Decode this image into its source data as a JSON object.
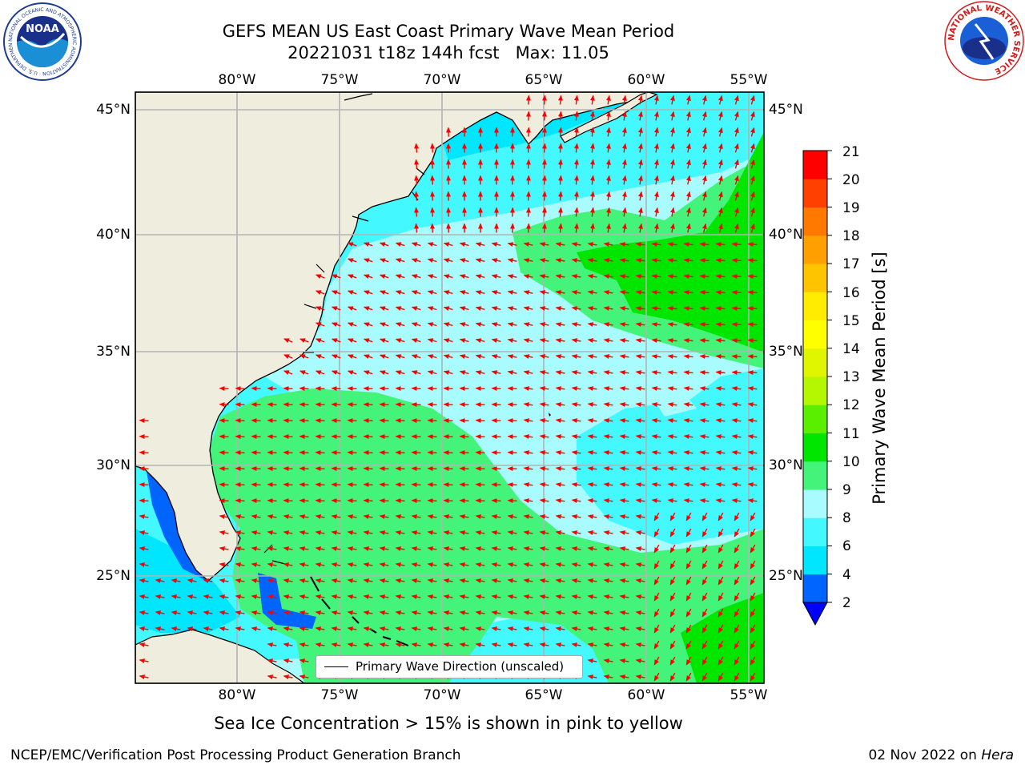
{
  "title": "GEFS MEAN US East Coast Primary Wave Mean Period",
  "subtitle_prefix": "20221031 t18z 144h fcst",
  "max_label": "Max: 11.05",
  "logos": {
    "left": "NOAA",
    "left_ring_text": "NATIONAL OCEANIC AND ATMOSPHERIC ADMINISTRATION · U.S. DEPARTMENT OF COMMERCE",
    "right_ring_text": "NATIONAL WEATHER SERVICE"
  },
  "map": {
    "lon_labels": [
      "80°W",
      "75°W",
      "70°W",
      "65°W",
      "60°W",
      "55°W"
    ],
    "lat_labels": [
      "45°N",
      "40°N",
      "35°N",
      "30°N",
      "25°N"
    ],
    "legend_label": "Primary Wave Direction (unscaled)",
    "colors": {
      "land": "#efedde",
      "arrow": "#ff0000",
      "grid": "#b3b3b3"
    }
  },
  "colorbar": {
    "label": "Primary Wave Mean Period [s]",
    "ticks": [
      2,
      4,
      6,
      8,
      9,
      10,
      11,
      12,
      13,
      14,
      15,
      16,
      17,
      18,
      19,
      20,
      21
    ],
    "colors": [
      "#0064ff",
      "#00e6ff",
      "#44f8ff",
      "#a8fbff",
      "#44f47a",
      "#00e600",
      "#5aee00",
      "#b4f700",
      "#dff600",
      "#ffff00",
      "#ffec00",
      "#ffc400",
      "#ffa000",
      "#ff7800",
      "#ff4000",
      "#ff0000"
    ],
    "extend_color": "#0000ff"
  },
  "footer": {
    "note": "Sea Ice Concentration > 15% is shown in pink to yellow",
    "left": "NCEP/EMC/Verification Post Processing Product Generation Branch",
    "right_date": "02 Nov 2022 on",
    "right_machine": "Hera"
  }
}
